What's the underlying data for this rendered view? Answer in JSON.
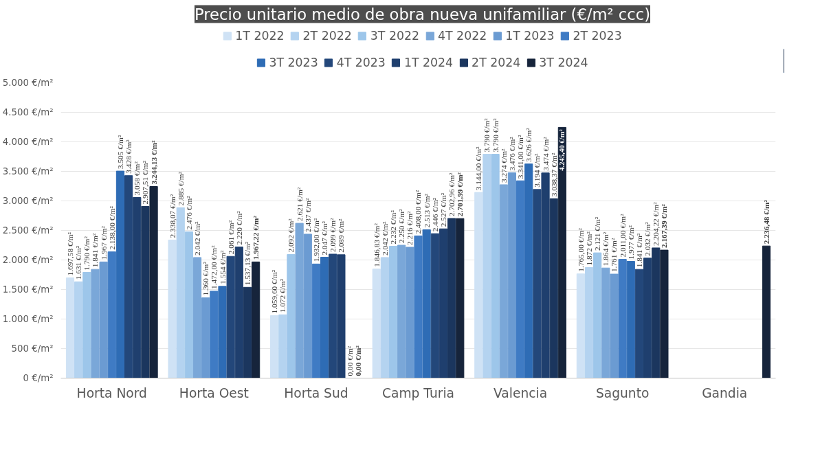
{
  "chart_data": {
    "type": "bar",
    "title": "Precio unitario medio de obra nueva unifamiliar (€/m² ccc)",
    "categories": [
      "Horta Nord",
      "Horta Oest",
      "Horta Sud",
      "Camp Turia",
      "Valencia",
      "Sagunto",
      "Gandia"
    ],
    "ylim": [
      0,
      5000
    ],
    "yticks": [
      {
        "value": 0,
        "label": "0 €/m²"
      },
      {
        "value": 500,
        "label": "500 €/m²"
      },
      {
        "value": 1000,
        "label": "1.000 €/m²"
      },
      {
        "value": 1500,
        "label": "1.500 €/m²"
      },
      {
        "value": 2000,
        "label": "2.000 €/m²"
      },
      {
        "value": 2500,
        "label": "2.500 €/m²"
      },
      {
        "value": 3000,
        "label": "3.000 €/m²"
      },
      {
        "value": 3500,
        "label": "3.500 €/m²"
      },
      {
        "value": 4000,
        "label": "4.000 €/m²"
      },
      {
        "value": 4500,
        "label": "4.500 €/m²"
      },
      {
        "value": 5000,
        "label": "5.000 €/m²"
      }
    ],
    "grid": "y",
    "legend": "top",
    "series": [
      {
        "name": "1T 2022",
        "color": "#cfe2f5",
        "values": [
          1697.58,
          2338.07,
          1059.6,
          1846.83,
          3144.0,
          1765.0,
          null
        ],
        "value_labels": [
          "1.697,58 €/m²",
          "2.338,07 €/m²",
          "1.059,60 €/m²",
          "1.846,83 €/m²",
          "3.144,00 €/m²",
          "1.765,00 €/m²",
          null
        ]
      },
      {
        "name": "2T 2022",
        "color": "#b4d3f0",
        "values": [
          1631,
          2885,
          1072,
          2042,
          3790,
          1872,
          null
        ],
        "value_labels": [
          "1.631 €/m²",
          "2.885 €/m²",
          "1.072 €/m²",
          "2.042 €/m²",
          "3.790 €/m²",
          "1.872 €/m²",
          null
        ]
      },
      {
        "name": "3T 2022",
        "color": "#9dc6ea",
        "values": [
          1790,
          2476,
          2092,
          2232,
          3790,
          2121,
          null
        ],
        "value_labels": [
          "1.790 €/m²",
          "2.476 €/m²",
          "2.092 €/m²",
          "2.232 €/m²",
          "3.790 €/m²",
          "2.121 €/m²",
          null
        ]
      },
      {
        "name": "4T 2022",
        "color": "#7aa7d8",
        "values": [
          1841,
          2042,
          2621,
          2250,
          3274,
          1864,
          null
        ],
        "value_labels": [
          "1.841 €/m²",
          "2.042 €/m²",
          "2.621 €/m²",
          "2.250 €/m²",
          "3.274 €/m²",
          "1.864 €/m²",
          null
        ]
      },
      {
        "name": "1T 2023",
        "color": "#6b9bd2",
        "values": [
          1967,
          1360,
          2437,
          2216,
          3476,
          1761,
          null
        ],
        "value_labels": [
          "1.967 €/m²",
          "1.360 €/m²",
          "2.437 €/m²",
          "2.216 €/m²",
          "3.476 €/m²",
          "1.761 €/m²",
          null
        ]
      },
      {
        "name": "2T 2023",
        "color": "#3f7bc4",
        "values": [
          2138.0,
          1472.0,
          1932.0,
          2408.0,
          3341.0,
          2011.0,
          null
        ],
        "value_labels": [
          "2.138,00 €/m²",
          "1.472,00 €/m²",
          "1.932,00 €/m²",
          "2.408,00 €/m²",
          "3.341,00 €/m²",
          "2.011,00 €/m²",
          null
        ]
      },
      {
        "name": "3T 2023",
        "color": "#2e6cb5",
        "values": [
          3505,
          1554,
          2047,
          2513,
          3626,
          1977,
          null
        ],
        "value_labels": [
          "3.505 €/m²",
          "1.554 €/m²",
          "2.047 €/m²",
          "2.513 €/m²",
          "3.626 €/m²",
          "1.977 €/m²",
          null
        ]
      },
      {
        "name": "4T 2023",
        "color": "#23477a",
        "values": [
          3428,
          2061,
          2099,
          2446,
          3194,
          1841,
          null
        ],
        "value_labels": [
          "3.428 €/m²",
          "2.061 €/m²",
          "2.099 €/m²",
          "2.446 €/m²",
          "3.194 €/m²",
          "1.841 €/m²",
          null
        ]
      },
      {
        "name": "1T 2024",
        "color": "#1f3f6e",
        "values": [
          3058,
          2220,
          2089,
          2527,
          3474,
          2032,
          null
        ],
        "value_labels": [
          "3.058 €/m²",
          "2.220 €/m²",
          "2.089 €/m²",
          "2.527 €/m²",
          "3.474 €/m²",
          "2.032 €/m²",
          null
        ]
      },
      {
        "name": "2T 2024",
        "color": "#1b365e",
        "values": [
          2907.51,
          1537.13,
          0.0,
          2702.96,
          3038.37,
          2204.22,
          null
        ],
        "value_labels": [
          "2.907,51 €/m²",
          "1.537,13 €/m²",
          "0,00 €/m²",
          "2.702,96 €/m²",
          "3.038,37 €/m²",
          "2.204,22 €/m²",
          null
        ]
      },
      {
        "name": "3T 2024",
        "color": "#16243b",
        "values": [
          3244.13,
          1967.22,
          0.0,
          2701.99,
          4245.4,
          2167.39,
          2236.48
        ],
        "value_labels": [
          "3.244,13 €/m²",
          "1.967,22 €/m²",
          "0,00 €/m²",
          "2.701,99 €/m²",
          "4.245,40 €/m²",
          "2.167,39 €/m²",
          "2.236,48 €/m²"
        ]
      }
    ]
  }
}
